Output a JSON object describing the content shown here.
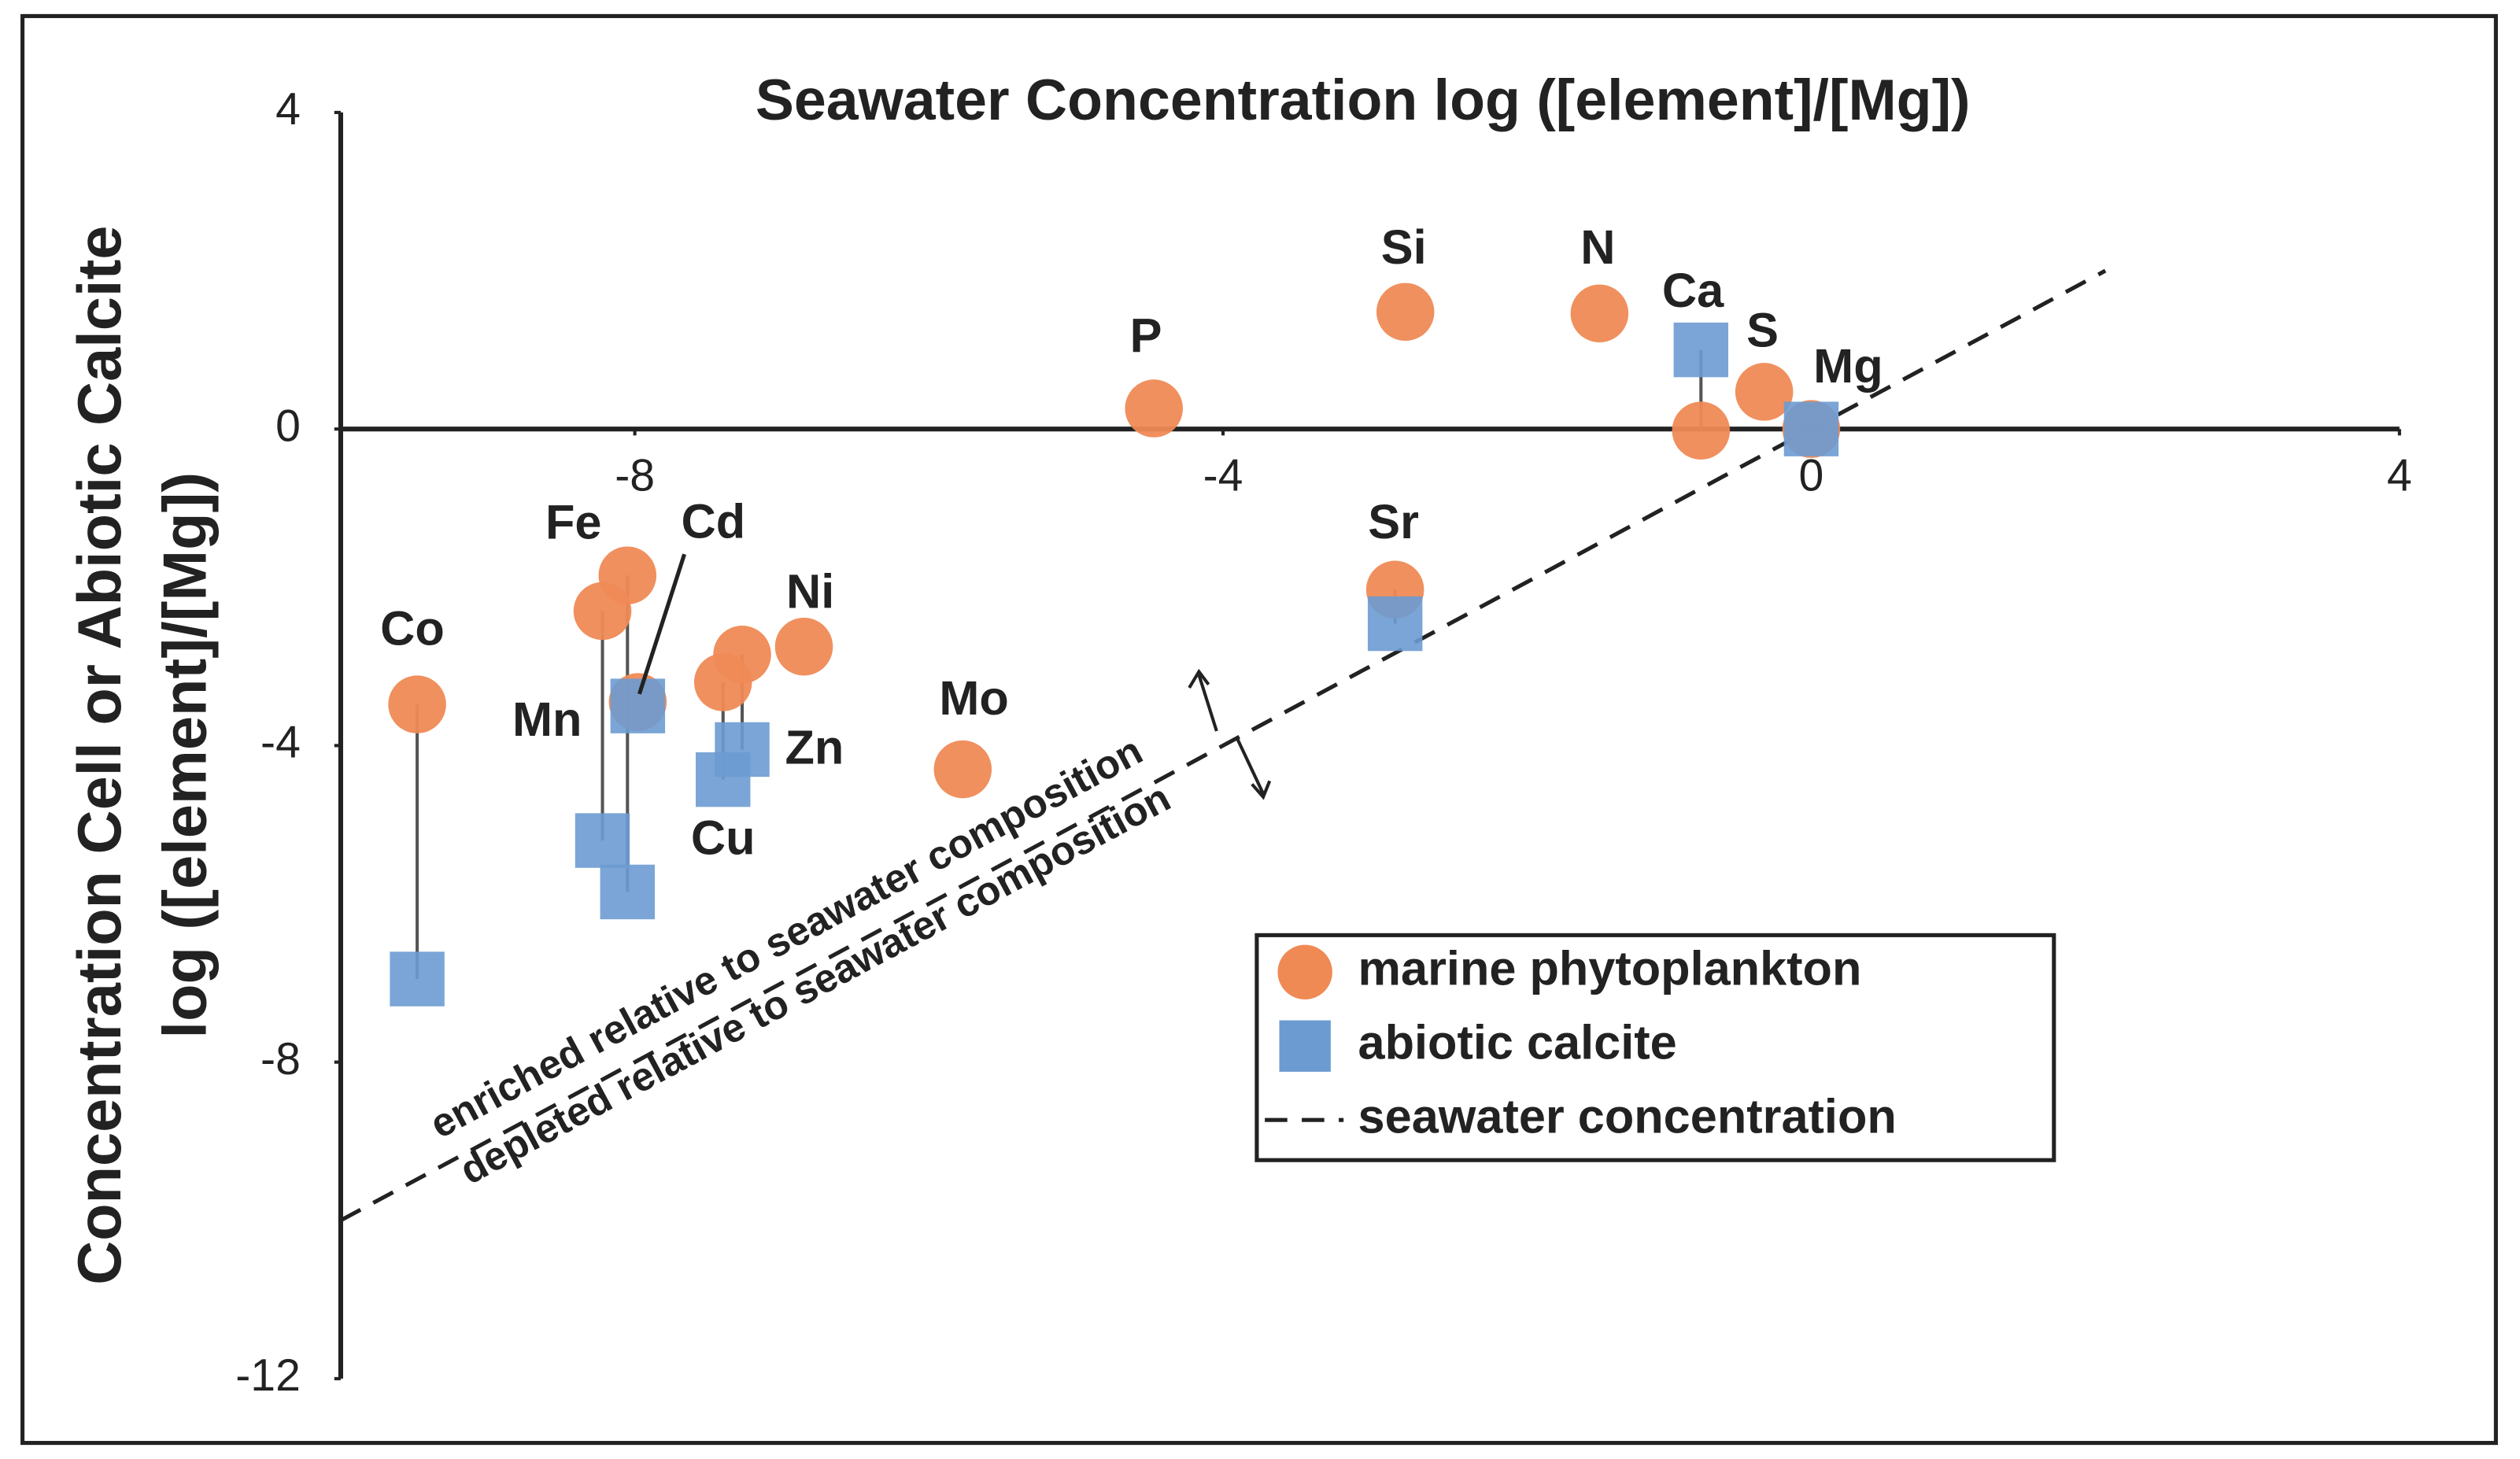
{
  "chart_data": {
    "type": "scatter",
    "title": "Seawater Concentration log ([element]/[Mg])",
    "y_label": [
      "Concentration Cell or Abiotic Calcite",
      "log ([element]/[Mg])"
    ],
    "xlim": [
      -10,
      4
    ],
    "ylim": [
      -12,
      4
    ],
    "xticks": [
      -8,
      -4,
      0,
      4
    ],
    "yticks": [
      4,
      0,
      -4,
      -8,
      -12
    ],
    "series": [
      {
        "name": "marine phytoplankton",
        "color": "#ef8a55",
        "marker": "circle",
        "labels": [
          "Co",
          "Fe",
          "Mn",
          "Cd",
          "Cu",
          "Zn",
          "Ni",
          "Mo",
          "P",
          "Sr",
          "Si",
          "N",
          "Ca",
          "S",
          "Mg"
        ],
        "x": [
          -9.48,
          -8.22,
          -8.05,
          -7.98,
          -7.4,
          -7.27,
          -6.85,
          -5.77,
          -4.47,
          -2.83,
          -2.76,
          -1.44,
          -0.75,
          -0.32,
          0
        ],
        "values": [
          -3.48,
          -2.3,
          -1.85,
          -3.45,
          -3.2,
          -2.85,
          -2.75,
          -4.3,
          0.26,
          -2.03,
          1.48,
          1.46,
          -0.02,
          0.47,
          0
        ]
      },
      {
        "name": "abiotic calcite",
        "color": "#6b9bd1",
        "marker": "square",
        "x": [
          -9.48,
          -8.22,
          -8.05,
          -7.98,
          -7.4,
          -7.27,
          -2.83,
          -0.75,
          0
        ],
        "values": [
          -6.95,
          -5.2,
          -5.85,
          -3.5,
          -4.43,
          -4.05,
          -2.46,
          1.0,
          0
        ]
      },
      {
        "name": "seawater concentration",
        "color": "#222222",
        "marker": "dashed-line",
        "x": [
          -10,
          2
        ],
        "values": [
          -10,
          2
        ]
      }
    ],
    "annotations": [
      "enriched relative to seawater composition",
      "depleted relative to seawater composition"
    ]
  }
}
